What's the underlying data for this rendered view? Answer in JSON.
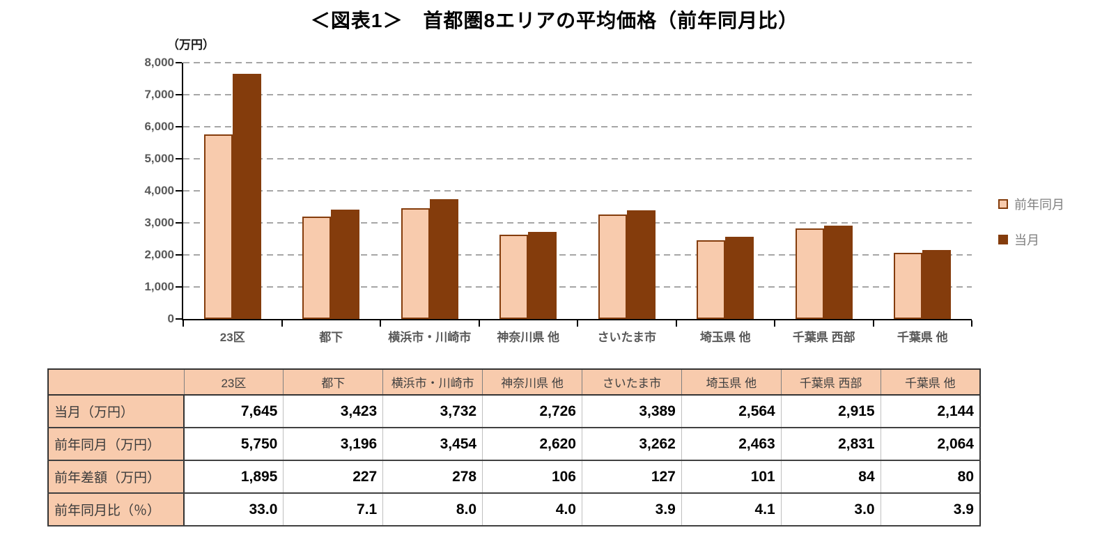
{
  "title": "＜図表1＞　首都圏8エリアの平均価格（前年同月比）",
  "chart_data": {
    "type": "bar",
    "title": "＜図表1＞　首都圏8エリアの平均価格（前年同月比）",
    "unit_label": "（万円）",
    "categories": [
      "23区",
      "都下",
      "横浜市・川崎市",
      "神奈川県 他",
      "さいたま市",
      "埼玉県 他",
      "千葉県 西部",
      "千葉県 他"
    ],
    "series": [
      {
        "name": "前年同月",
        "values": [
          5750,
          3196,
          3454,
          2620,
          3262,
          2463,
          2831,
          2064
        ]
      },
      {
        "name": "当月",
        "values": [
          7645,
          3423,
          3732,
          2726,
          3389,
          2564,
          2915,
          2144
        ]
      }
    ],
    "ylim": [
      0,
      8000
    ],
    "ytick_step": 1000,
    "ytick_labels": [
      "0",
      "1,000",
      "2,000",
      "3,000",
      "4,000",
      "5,000",
      "6,000",
      "7,000",
      "8,000"
    ],
    "grid": true,
    "legend_position": "right",
    "legend": [
      "前年同月",
      "当月"
    ]
  },
  "table": {
    "corner_label": "",
    "columns": [
      "23区",
      "都下",
      "横浜市・川崎市",
      "神奈川県 他",
      "さいたま市",
      "埼玉県 他",
      "千葉県 西部",
      "千葉県 他"
    ],
    "rows": [
      {
        "label": "当月（万円）",
        "values": [
          "7,645",
          "3,423",
          "3,732",
          "2,726",
          "3,389",
          "2,564",
          "2,915",
          "2,144"
        ]
      },
      {
        "label": "前年同月（万円）",
        "values": [
          "5,750",
          "3,196",
          "3,454",
          "2,620",
          "3,262",
          "2,463",
          "2,831",
          "2,064"
        ]
      },
      {
        "label": "前年差額（万円）",
        "values": [
          "1,895",
          "227",
          "278",
          "106",
          "127",
          "101",
          "84",
          "80"
        ]
      },
      {
        "label": "前年同月比（％）",
        "values": [
          "33.0",
          "7.1",
          "8.0",
          "4.0",
          "3.9",
          "4.1",
          "3.0",
          "3.9"
        ]
      }
    ]
  },
  "colors": {
    "series_prev_fill": "#F8CBAD",
    "series_prev_border": "#843C0C",
    "series_current_fill": "#843C0C",
    "gridline": "#A6A6A6",
    "axis": "#000000",
    "tick_label": "#595959",
    "legend_text": "#808080",
    "table_header_fill": "#F8CBAD"
  }
}
